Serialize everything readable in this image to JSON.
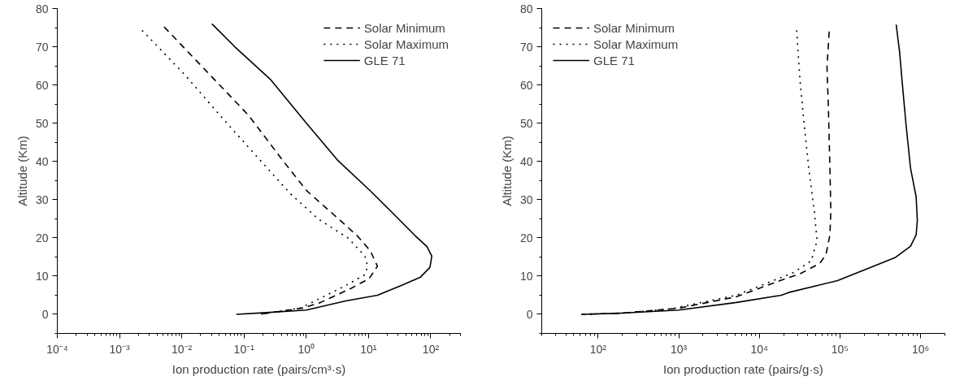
{
  "chart_data": [
    {
      "type": "line",
      "xlabel": "Ion production rate (pairs/cm³·s)",
      "ylabel": "Altitude (Km)",
      "log": "x",
      "grid": false,
      "legend": "top right",
      "marker": "none",
      "xlim": [
        0.0001,
        300
      ],
      "xticks": [
        {
          "value": 0.0001,
          "label": "10⁻⁴"
        },
        {
          "value": 0.001,
          "label": "10⁻³"
        },
        {
          "value": 0.01,
          "label": "10⁻²"
        },
        {
          "value": 0.1,
          "label": "10⁻¹"
        },
        {
          "value": 1,
          "label": "10⁰"
        },
        {
          "value": 10,
          "label": "10¹"
        },
        {
          "value": 100,
          "label": "10²"
        }
      ],
      "ylim": [
        -5,
        80
      ],
      "yticks": [
        0,
        10,
        20,
        30,
        40,
        50,
        60,
        70,
        80
      ],
      "series": [
        {
          "name": "Solar Minimum",
          "color": "#000000",
          "line_style": "dashed",
          "x": [
            0.0052,
            0.0256,
            0.119,
            0.45,
            1.02,
            3.67,
            6.8,
            10.7,
            13.9,
            10.2,
            5.25,
            1.7,
            0.92,
            0.18
          ],
          "values": [
            75.2,
            63.4,
            52,
            39.6,
            32.3,
            24.3,
            20.3,
            16.6,
            12.6,
            9.3,
            6.8,
            3.1,
            1.7,
            0
          ]
        },
        {
          "name": "Solar Maximum",
          "color": "#000000",
          "line_style": "dotted",
          "x": [
            0.0023,
            0.0113,
            0.0474,
            0.199,
            0.552,
            1.54,
            4.74,
            8.75,
            9.7,
            8.75,
            4.28,
            1.54,
            0.83,
            0.18
          ],
          "values": [
            74.3,
            62.6,
            50.9,
            39.6,
            31.6,
            25.0,
            19.9,
            15.2,
            12.6,
            10.4,
            7.5,
            3.9,
            1.7,
            0
          ]
        },
        {
          "name": "GLE 71",
          "color": "#000000",
          "line_style": "solid",
          "x": [
            0.0305,
            0.071,
            0.264,
            1.02,
            3.15,
            10.7,
            24.4,
            55,
            87,
            104,
            97,
            68,
            33,
            13.9,
            4.3,
            1,
            0.2,
            0.075
          ],
          "values": [
            76,
            70,
            61.5,
            49.9,
            40.4,
            32.3,
            26.5,
            20.7,
            17.7,
            15.2,
            12.3,
            9.7,
            7.5,
            5.0,
            3.5,
            1.1,
            0.4,
            0
          ]
        }
      ]
    },
    {
      "type": "line",
      "xlabel": "Ion production rate (pairs/g·s)",
      "ylabel": "Altitude (Km)",
      "log": "x",
      "grid": false,
      "legend": "top left",
      "marker": "none",
      "xlim": [
        20,
        2000000
      ],
      "xticks": [
        {
          "value": 100,
          "label": "10²"
        },
        {
          "value": 1000,
          "label": "10³"
        },
        {
          "value": 10000,
          "label": "10⁴"
        },
        {
          "value": 100000,
          "label": "10⁵"
        },
        {
          "value": 1000000,
          "label": "10⁶"
        }
      ],
      "ylim": [
        -5,
        80
      ],
      "yticks": [
        0,
        10,
        20,
        30,
        40,
        50,
        60,
        70,
        80
      ],
      "series": [
        {
          "name": "Solar Minimum",
          "color": "#000000",
          "line_style": "dashed",
          "x": [
            73500,
            69000,
            72000,
            75000,
            77000,
            75000,
            67000,
            56000,
            32000,
            18000,
            5200,
            1000,
            196,
            62
          ],
          "values": [
            74.0,
            64.7,
            53.3,
            38.2,
            26.9,
            20.8,
            15.6,
            13.3,
            10.6,
            8.8,
            4.6,
            1.6,
            0.3,
            0
          ]
        },
        {
          "name": "Solar Maximum",
          "color": "#000000",
          "line_style": "dotted",
          "x": [
            29000,
            32000,
            36000,
            41000,
            48000,
            52000,
            44000,
            27000,
            11900,
            5200,
            790,
            196,
            62
          ],
          "values": [
            74.3,
            60.9,
            49.5,
            38.2,
            26.9,
            19.3,
            14.0,
            11.0,
            8.0,
            5.0,
            1.4,
            0.3,
            0
          ]
        },
        {
          "name": "GLE 71",
          "color": "#000000",
          "line_style": "solid",
          "x": [
            498000,
            550000,
            590000,
            660000,
            750000,
            880000,
            910000,
            880000,
            750000,
            480000,
            210000,
            93000,
            23000,
            18700,
            5200,
            1000,
            196,
            62
          ],
          "values": [
            75.8,
            68.4,
            60.9,
            49.5,
            38.2,
            30.7,
            24.6,
            20.8,
            17.8,
            14.8,
            11.8,
            8.8,
            5.7,
            5.0,
            3.1,
            1.1,
            0.3,
            0
          ]
        }
      ]
    }
  ]
}
